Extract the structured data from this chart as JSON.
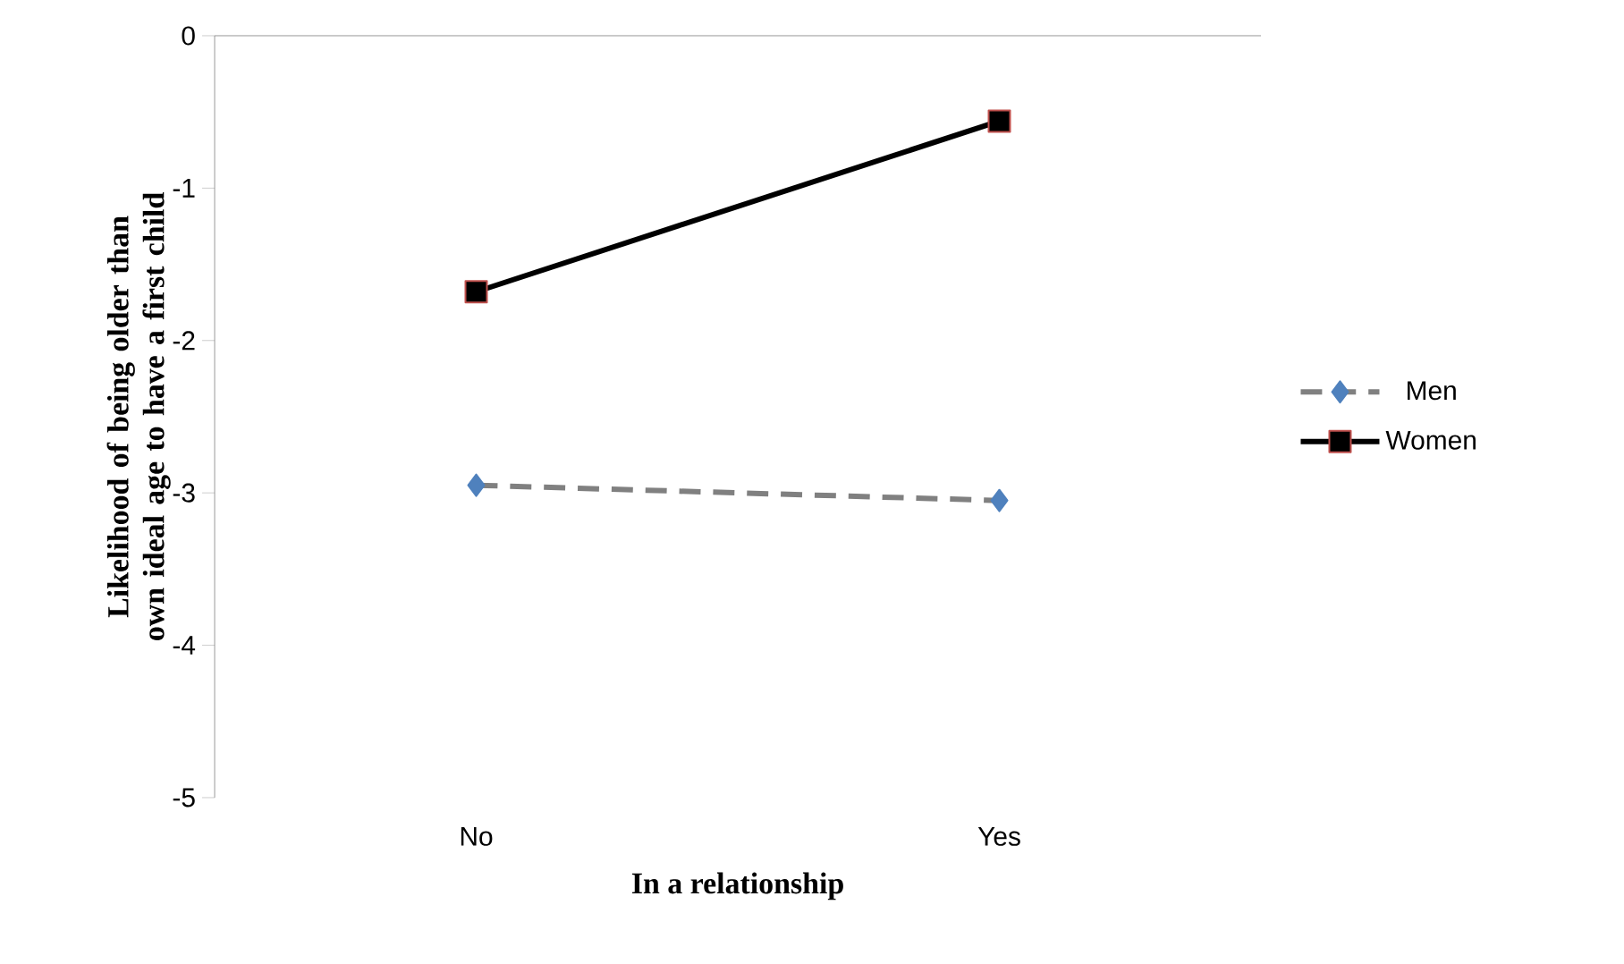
{
  "chart_data": {
    "type": "line",
    "xlabel": "In a relationship",
    "ylabel": "Likelihood of being older than own ideal age to have a first child",
    "categories": [
      "No",
      "Yes"
    ],
    "series": [
      {
        "name": "Men",
        "color": "#808080",
        "values": [
          -2.95,
          -3.05
        ],
        "marker": "diamond",
        "line_style": "dashed"
      },
      {
        "name": "Women",
        "color": "#000000",
        "values": [
          -1.68,
          -0.56
        ],
        "marker": "square",
        "line_style": "solid"
      }
    ],
    "ylim": [
      -5,
      0
    ],
    "yticks": [
      -5,
      -4,
      -3,
      -2,
      -1,
      0
    ],
    "grid": false,
    "legend": "right"
  }
}
